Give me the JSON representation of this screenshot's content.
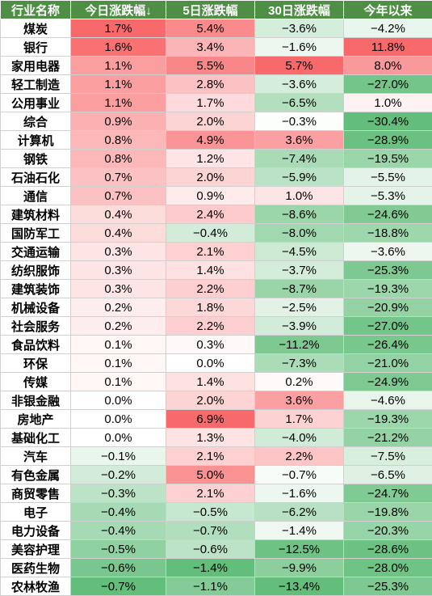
{
  "headers": [
    "行业名称",
    "今日涨跌幅↓",
    "5日涨跌幅",
    "30日涨跌幅",
    "今年以来"
  ],
  "rows": [
    [
      "煤炭",
      "1.7%",
      "5.4%",
      "−3.6%",
      "−4.2%"
    ],
    [
      "银行",
      "1.6%",
      "3.4%",
      "−1.6%",
      "11.8%"
    ],
    [
      "家用电器",
      "1.1%",
      "5.5%",
      "5.7%",
      "8.0%"
    ],
    [
      "轻工制造",
      "1.1%",
      "2.8%",
      "−3.6%",
      "−27.0%"
    ],
    [
      "公用事业",
      "1.1%",
      "1.7%",
      "−6.5%",
      "1.0%"
    ],
    [
      "综合",
      "0.9%",
      "2.0%",
      "−0.3%",
      "−30.4%"
    ],
    [
      "计算机",
      "0.8%",
      "4.9%",
      "3.6%",
      "−28.9%"
    ],
    [
      "钢铁",
      "0.8%",
      "1.2%",
      "−7.4%",
      "−19.5%"
    ],
    [
      "石油石化",
      "0.7%",
      "2.0%",
      "−5.9%",
      "−5.5%"
    ],
    [
      "通信",
      "0.7%",
      "0.9%",
      "1.0%",
      "−5.3%"
    ],
    [
      "建筑材料",
      "0.4%",
      "2.4%",
      "−8.6%",
      "−24.6%"
    ],
    [
      "国防军工",
      "0.4%",
      "−0.4%",
      "−8.0%",
      "−18.8%"
    ],
    [
      "交通运输",
      "0.3%",
      "2.1%",
      "−4.5%",
      "−3.6%"
    ],
    [
      "纺织服饰",
      "0.3%",
      "1.4%",
      "−3.7%",
      "−25.3%"
    ],
    [
      "建筑装饰",
      "0.3%",
      "2.2%",
      "−8.7%",
      "−19.3%"
    ],
    [
      "机械设备",
      "0.2%",
      "1.8%",
      "−2.5%",
      "−20.9%"
    ],
    [
      "社会服务",
      "0.2%",
      "2.2%",
      "−3.9%",
      "−27.0%"
    ],
    [
      "食品饮料",
      "0.1%",
      "0.3%",
      "−11.2%",
      "−26.4%"
    ],
    [
      "环保",
      "0.1%",
      "0.0%",
      "−7.3%",
      "−21.0%"
    ],
    [
      "传媒",
      "0.1%",
      "1.4%",
      "0.2%",
      "−24.9%"
    ],
    [
      "非银金融",
      "0.0%",
      "2.0%",
      "3.6%",
      "−4.6%"
    ],
    [
      "房地产",
      "0.0%",
      "6.9%",
      "1.7%",
      "−19.3%"
    ],
    [
      "基础化工",
      "0.0%",
      "1.3%",
      "−4.0%",
      "−21.2%"
    ],
    [
      "汽车",
      "−0.1%",
      "2.1%",
      "2.2%",
      "−7.5%"
    ],
    [
      "有色金属",
      "−0.2%",
      "5.0%",
      "−0.7%",
      "−6.5%"
    ],
    [
      "商贸零售",
      "−0.3%",
      "2.1%",
      "−1.6%",
      "−24.7%"
    ],
    [
      "电子",
      "−0.4%",
      "−0.5%",
      "−6.2%",
      "−19.8%"
    ],
    [
      "电力设备",
      "−0.4%",
      "−0.7%",
      "−1.4%",
      "−20.3%"
    ],
    [
      "美容护理",
      "−0.5%",
      "−0.6%",
      "−12.5%",
      "−28.6%"
    ],
    [
      "医药生物",
      "−0.6%",
      "−1.4%",
      "−9.9%",
      "−28.0%"
    ],
    [
      "农林牧渔",
      "−0.7%",
      "−1.1%",
      "−13.4%",
      "−25.3%"
    ]
  ],
  "colors": {
    "header_bg": "#4f8f45",
    "header_text": "#ffffff",
    "positive_max": "#f8696b",
    "negative_max": "#63be7b",
    "neutral": "#ffffff"
  }
}
